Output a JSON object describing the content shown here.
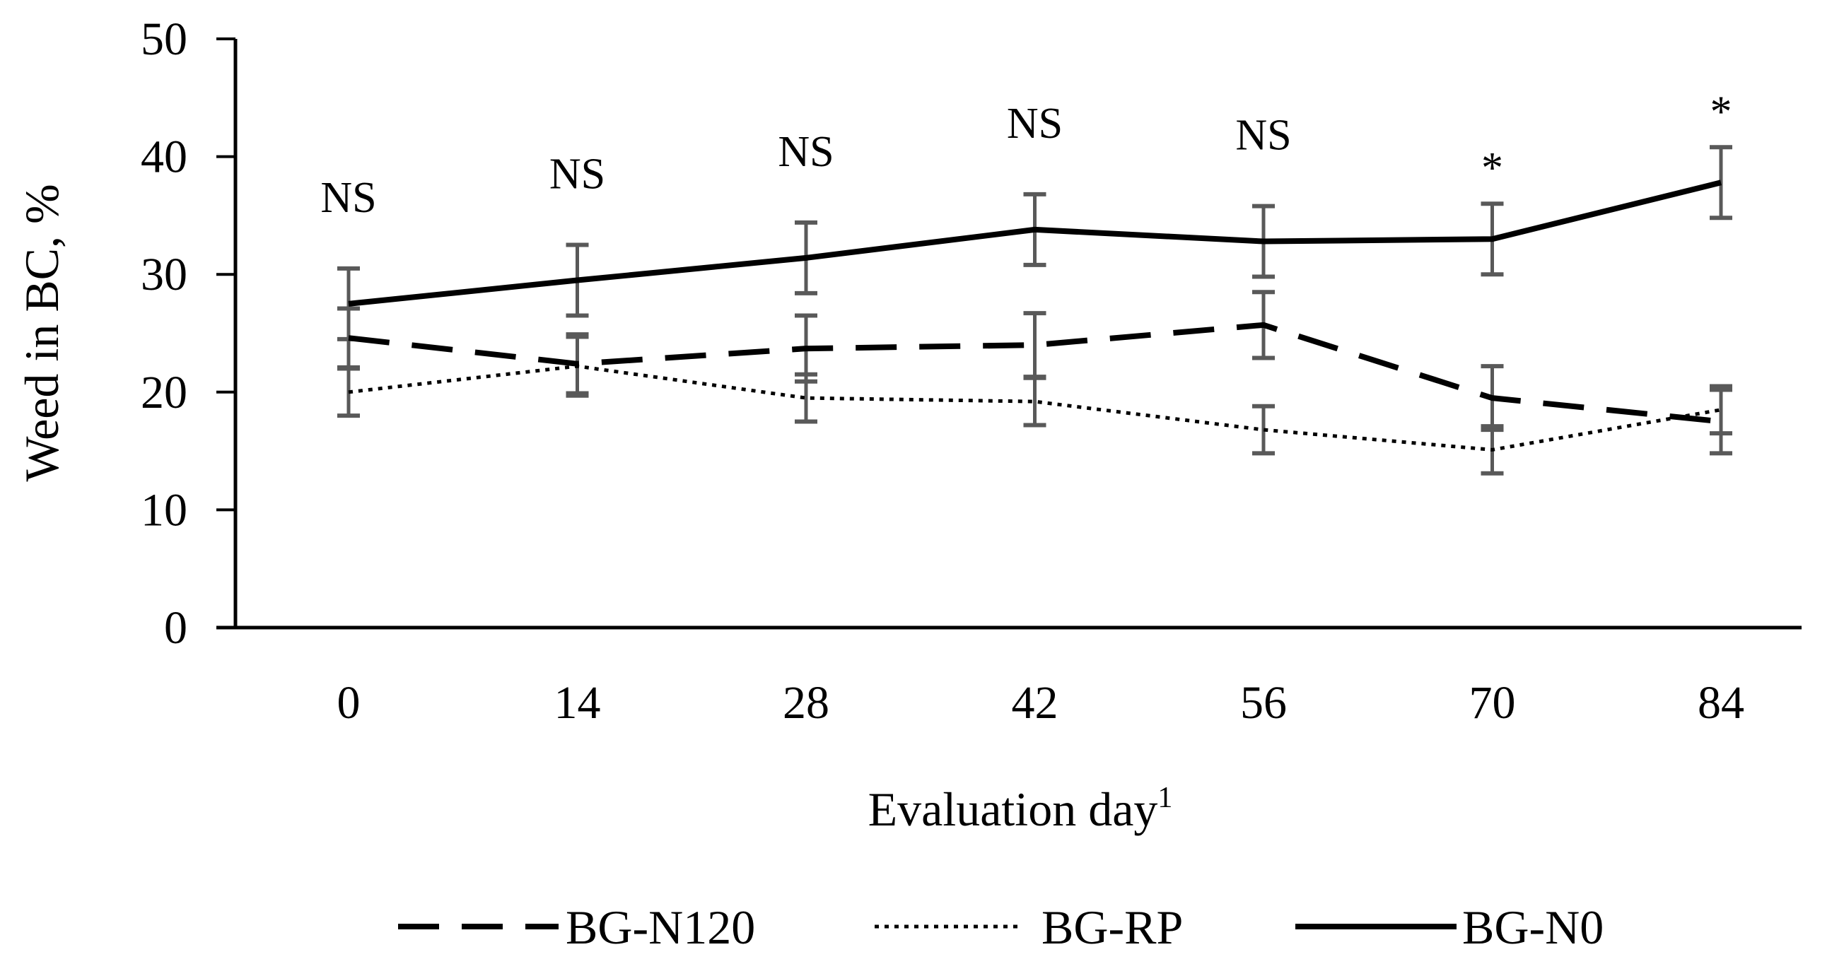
{
  "chart_data": {
    "type": "line",
    "title": "",
    "xlabel": "Evaluation day",
    "xlabel_superscript": "1",
    "ylabel": "Weed in BC, %",
    "ylim": [
      0,
      50
    ],
    "yticks": [
      "0",
      "10",
      "20",
      "30",
      "40",
      "50"
    ],
    "categories": [
      "0",
      "14",
      "28",
      "42",
      "56",
      "70",
      "84"
    ],
    "significance": [
      "NS",
      "NS",
      "NS",
      "NS",
      "NS",
      "*",
      "*"
    ],
    "legend_position": "bottom",
    "series": [
      {
        "name": "BG-N120",
        "style": "dashed",
        "values": [
          24.6,
          22.4,
          23.7,
          24.0,
          25.7,
          19.5,
          17.5
        ],
        "errors": [
          2.5,
          2.5,
          2.8,
          2.7,
          2.8,
          2.7,
          2.7
        ]
      },
      {
        "name": "BG-RP",
        "style": "dotted",
        "values": [
          20.0,
          22.2,
          19.5,
          19.2,
          16.8,
          15.1,
          18.5
        ],
        "errors": [
          2.0,
          2.5,
          2.0,
          2.0,
          2.0,
          2.0,
          2.0
        ]
      },
      {
        "name": "BG-N0",
        "style": "solid",
        "values": [
          27.5,
          29.5,
          31.4,
          33.8,
          32.8,
          33.0,
          37.8
        ],
        "errors": [
          3.0,
          3.0,
          3.0,
          3.0,
          3.0,
          3.0,
          3.0
        ]
      }
    ],
    "colors": {
      "line": "#000000",
      "error_bar": "#595959",
      "axis": "#000000"
    }
  }
}
